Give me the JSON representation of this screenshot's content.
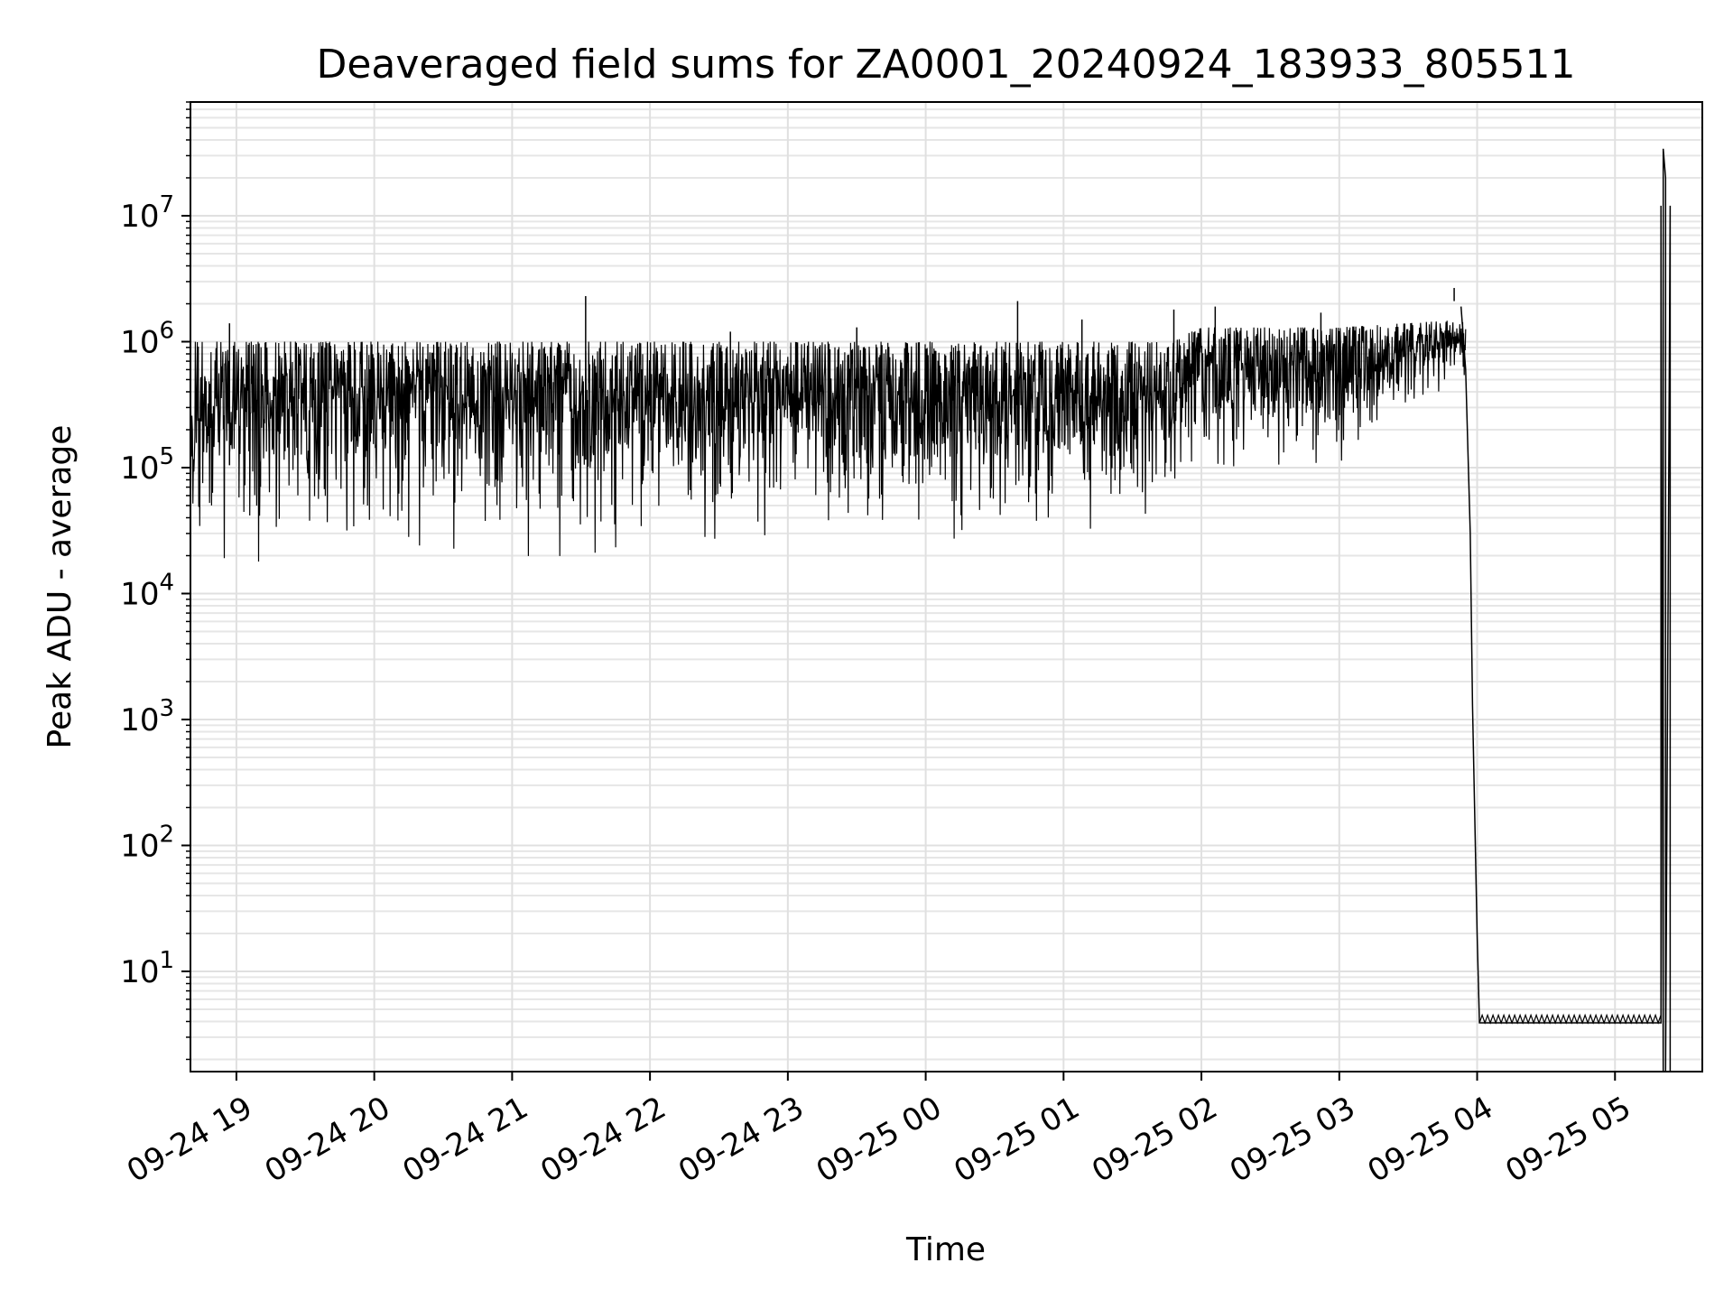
{
  "chart_data": {
    "type": "line",
    "title": "Deaveraged field sums for ZA0001_20240924_183933_805511",
    "xlabel": "Time",
    "ylabel": "Peak ADU - average",
    "yscale": "log",
    "ylim": [
      1.6,
      80000000
    ],
    "xlim": [
      "2024-09-24 18:40",
      "2024-09-25 05:38"
    ],
    "grid": true,
    "x_ticks": [
      {
        "value": "2024-09-24 19:00",
        "label": "09-24 19"
      },
      {
        "value": "2024-09-24 20:00",
        "label": "09-24 20"
      },
      {
        "value": "2024-09-24 21:00",
        "label": "09-24 21"
      },
      {
        "value": "2024-09-24 22:00",
        "label": "09-24 22"
      },
      {
        "value": "2024-09-24 23:00",
        "label": "09-24 23"
      },
      {
        "value": "2024-09-25 00:00",
        "label": "09-25 00"
      },
      {
        "value": "2024-09-25 01:00",
        "label": "09-25 01"
      },
      {
        "value": "2024-09-25 02:00",
        "label": "09-25 02"
      },
      {
        "value": "2024-09-25 03:00",
        "label": "09-25 03"
      },
      {
        "value": "2024-09-25 04:00",
        "label": "09-25 04"
      },
      {
        "value": "2024-09-25 05:00",
        "label": "09-25 05"
      }
    ],
    "y_ticks": [
      {
        "value": 10,
        "base": "10",
        "exp": "1"
      },
      {
        "value": 100,
        "base": "10",
        "exp": "2"
      },
      {
        "value": 1000,
        "base": "10",
        "exp": "3"
      },
      {
        "value": 10000,
        "base": "10",
        "exp": "4"
      },
      {
        "value": 100000,
        "base": "10",
        "exp": "5"
      },
      {
        "value": 1000000,
        "base": "10",
        "exp": "6"
      },
      {
        "value": 10000000,
        "base": "10",
        "exp": "7"
      }
    ],
    "series": [
      {
        "color": "#000000",
        "envelope": [
          {
            "x": "2024-09-24 18:40",
            "low": 20000,
            "high": 1000000
          },
          {
            "x": "2024-09-24 19:00",
            "low": 16000,
            "high": 1000000
          },
          {
            "x": "2024-09-24 20:00",
            "low": 20000,
            "high": 1000000
          },
          {
            "x": "2024-09-24 21:00",
            "low": 20000,
            "high": 1000000
          },
          {
            "x": "2024-09-24 22:00",
            "low": 17000,
            "high": 1000000
          },
          {
            "x": "2024-09-24 23:00",
            "low": 20000,
            "high": 1000000
          },
          {
            "x": "2024-09-25 00:00",
            "low": 22000,
            "high": 1000000
          },
          {
            "x": "2024-09-25 01:00",
            "low": 25000,
            "high": 1000000
          },
          {
            "x": "2024-09-25 01:45",
            "low": 40000,
            "high": 1000000
          },
          {
            "x": "2024-09-25 02:00",
            "low": 70000,
            "high": 1300000
          },
          {
            "x": "2024-09-25 03:00",
            "low": 80000,
            "high": 1300000
          },
          {
            "x": "2024-09-25 03:55",
            "low": 500000,
            "high": 1500000
          }
        ],
        "spikes": [
          {
            "x": "2024-09-24 18:57",
            "y": 1400000
          },
          {
            "x": "2024-09-24 21:32",
            "y": 2300000
          },
          {
            "x": "2024-09-24 22:35",
            "y": 1200000
          },
          {
            "x": "2024-09-24 23:30",
            "y": 1300000
          },
          {
            "x": "2024-09-25 00:40",
            "y": 2100000
          },
          {
            "x": "2024-09-25 01:08",
            "y": 1500000
          },
          {
            "x": "2024-09-25 01:48",
            "y": 1800000
          },
          {
            "x": "2024-09-25 02:06",
            "y": 1900000
          },
          {
            "x": "2024-09-25 02:52",
            "y": 1700000
          },
          {
            "x": "2024-09-25 03:50",
            "y": 2100000
          }
        ],
        "key_points": [
          {
            "x": "2024-09-25 03:53",
            "y": 1900000
          },
          {
            "x": "2024-09-25 03:55",
            "y": 600000
          },
          {
            "x": "2024-09-25 03:57",
            "y": 30000
          },
          {
            "x": "2024-09-25 03:58",
            "y": 1300
          },
          {
            "x": "2024-09-25 04:00",
            "y": 20
          },
          {
            "x": "2024-09-25 04:01",
            "y": 3.9
          },
          {
            "x": "2024-09-25 05:20",
            "y": 3.9
          },
          {
            "x": "2024-09-25 05:20",
            "y": 12000000
          },
          {
            "x": "2024-09-25 05:21",
            "y": 1.6
          },
          {
            "x": "2024-09-25 05:21",
            "y": 34000000
          },
          {
            "x": "2024-09-25 05:22",
            "y": 20000000
          },
          {
            "x": "2024-09-25 05:22",
            "y": 1.6
          },
          {
            "x": "2024-09-25 05:24",
            "y": 12000000
          },
          {
            "x": "2024-09-25 05:24",
            "y": 1.6
          }
        ],
        "floor_value": 3.9,
        "floor_ripple_high": 4.5
      }
    ]
  }
}
